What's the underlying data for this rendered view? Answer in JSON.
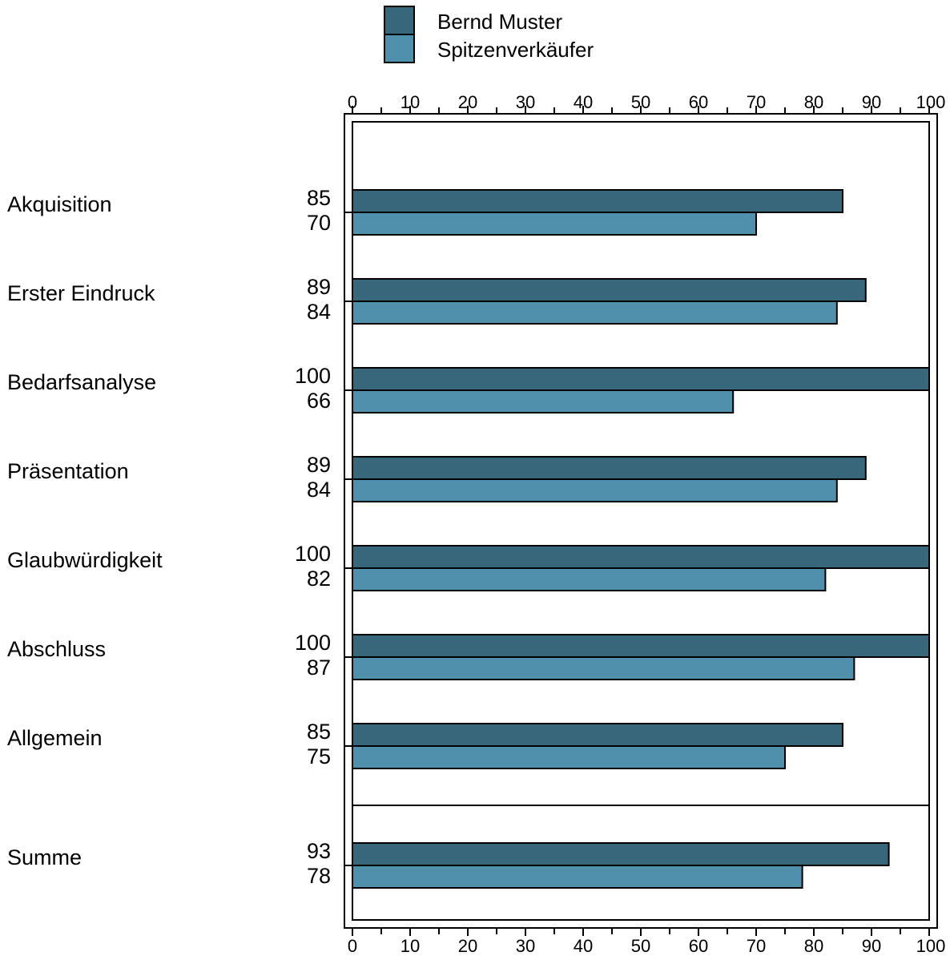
{
  "chart_data": {
    "type": "bar",
    "orientation": "horizontal",
    "title": "",
    "xlabel": "",
    "ylabel": "",
    "xlim": [
      0,
      100
    ],
    "x_ticks": [
      0,
      10,
      20,
      30,
      40,
      50,
      60,
      70,
      80,
      90,
      100
    ],
    "grid": false,
    "legend_position": "top",
    "categories": [
      "Akquisition",
      "Erster Eindruck",
      "Bedarfsanalyse",
      "Präsentation",
      "Glaubwürdigkeit",
      "Abschluss",
      "Allgemein",
      "Summe"
    ],
    "series": [
      {
        "name": "Bernd Muster",
        "color": "#38667a",
        "values": [
          85,
          89,
          100,
          89,
          100,
          100,
          85,
          93
        ]
      },
      {
        "name": "Spitzenverkäufer",
        "color": "#5090ad",
        "values": [
          70,
          84,
          66,
          84,
          82,
          87,
          75,
          78
        ]
      }
    ]
  }
}
